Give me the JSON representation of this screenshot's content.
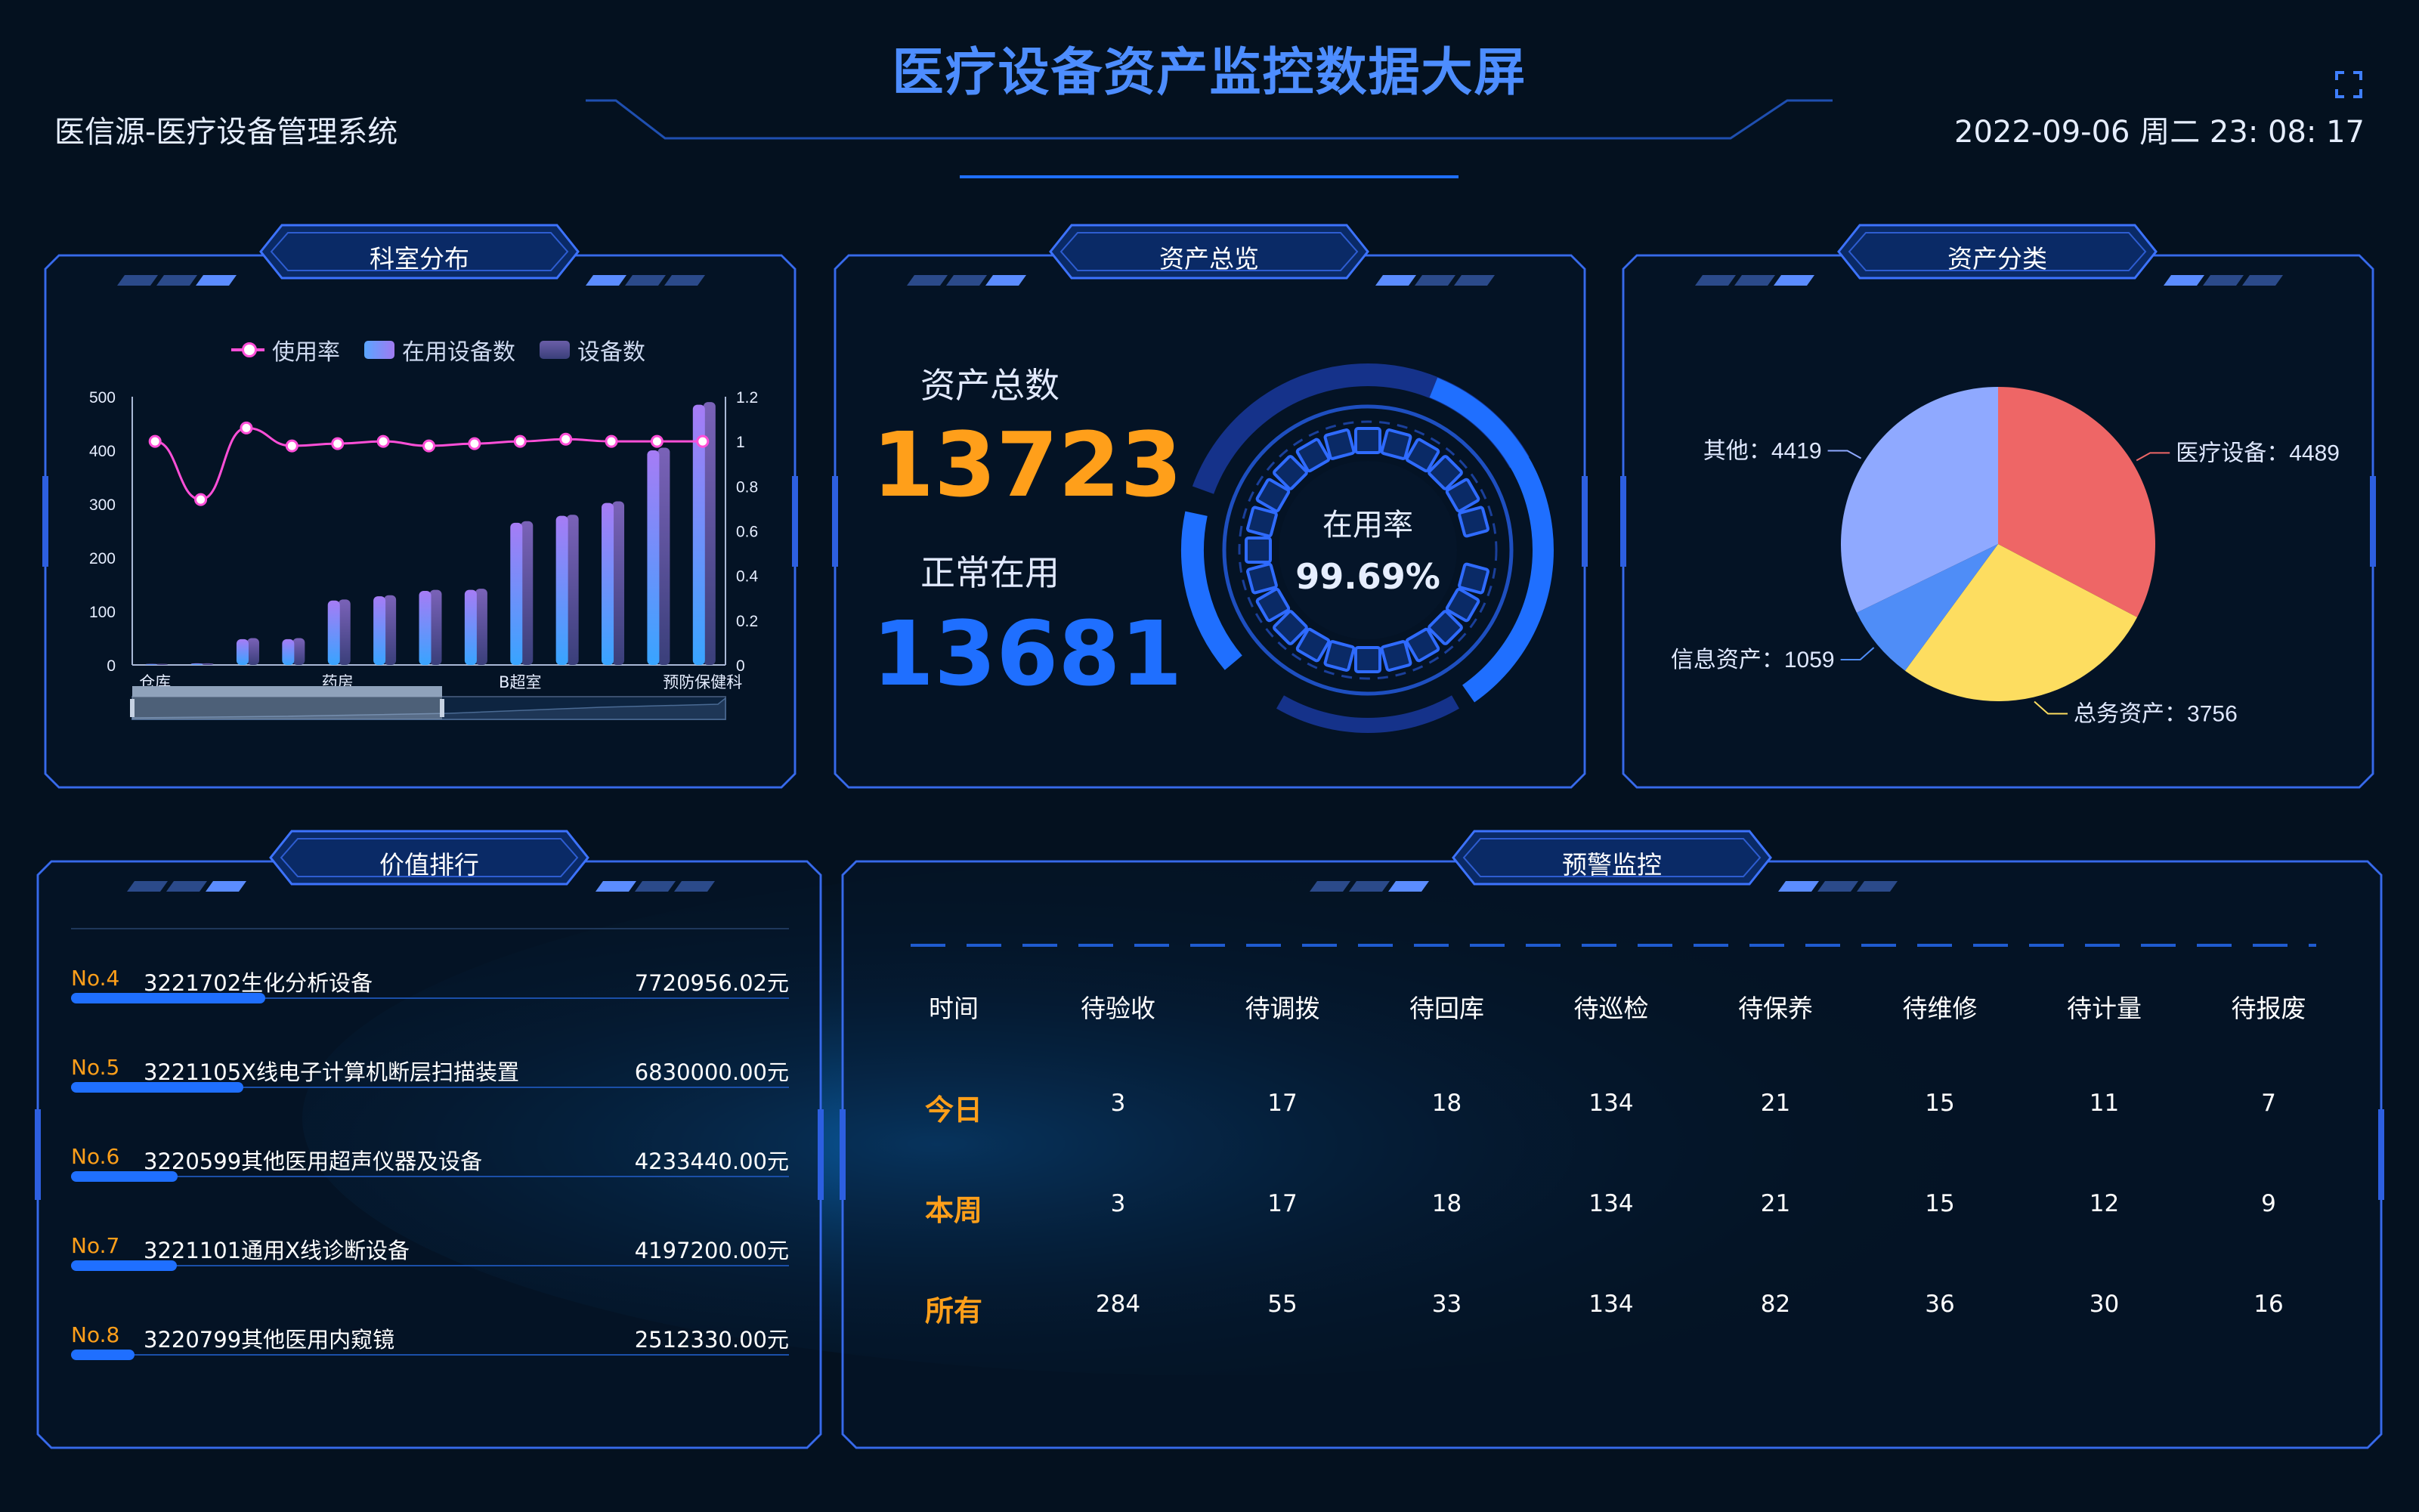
{
  "header": {
    "title": "医疗设备资产监控数据大屏",
    "system_name": "医信源-医疗设备管理系统",
    "datetime": "2022-09-06 周二 23: 08: 17",
    "fullscreen_icon": "expand-icon"
  },
  "panels": {
    "dept": {
      "title": "科室分布"
    },
    "overview": {
      "title": "资产总览"
    },
    "category": {
      "title": "资产分类"
    },
    "ranking": {
      "title": "价值排行"
    },
    "warning": {
      "title": "预警监控"
    }
  },
  "overview": {
    "total_label": "资产总数",
    "total_value": "13723",
    "normal_label": "正常在用",
    "normal_value": "13681",
    "rate_label": "在用率",
    "rate_value": "99.69%"
  },
  "colors": {
    "accent": "#4d8dff",
    "orange": "#ff9f1a",
    "blue_num": "#1f6fff",
    "pie_medical": "#ee6666",
    "pie_general": "#fddd60",
    "pie_info": "#4f8df7",
    "pie_other": "#8fa9ff"
  },
  "chart_data": [
    {
      "type": "bar",
      "legend": [
        "使用率",
        "在用设备数",
        "设备数"
      ],
      "categories": [
        "仓库",
        "",
        "",
        "",
        "药房",
        "",
        "",
        "",
        "B超室",
        "",
        "",
        "",
        "预防保健科"
      ],
      "series": [
        {
          "name": "在用设备数",
          "values": [
            2,
            3,
            48,
            48,
            120,
            128,
            138,
            140,
            265,
            278,
            302,
            400,
            485
          ]
        },
        {
          "name": "设备数",
          "values": [
            2,
            3,
            50,
            50,
            122,
            130,
            140,
            142,
            268,
            280,
            305,
            405,
            490
          ]
        },
        {
          "name": "使用率",
          "axis": "right",
          "values": [
            1.0,
            0.74,
            1.06,
            0.98,
            0.99,
            1.0,
            0.98,
            0.99,
            1.0,
            1.01,
            1.0,
            1.0,
            1.0
          ]
        }
      ],
      "ylim": [
        0,
        500
      ],
      "yticks": [
        "500",
        "400",
        "300",
        "200",
        "100",
        "0"
      ],
      "ylim_right": [
        0,
        1.2
      ],
      "yticks_right": [
        "1.2",
        "1",
        "0.8",
        "0.6",
        "0.4",
        "0.2",
        "0"
      ]
    },
    {
      "type": "pie",
      "slices": [
        {
          "name": "医疗设备",
          "value": 4489,
          "label": "医疗设备：4489"
        },
        {
          "name": "总务资产",
          "value": 3756,
          "label": "总务资产：3756"
        },
        {
          "name": "信息资产",
          "value": 1059,
          "label": "信息资产：1059"
        },
        {
          "name": "其他",
          "value": 4419,
          "label": "其他：4419"
        }
      ]
    }
  ],
  "ranking": {
    "items": [
      {
        "no": "No.4",
        "name": "3221702生化分析设备",
        "value": "7720956.02元",
        "ratio": 0.27
      },
      {
        "no": "No.5",
        "name": "3221105X线电子计算机断层扫描装置",
        "value": "6830000.00元",
        "ratio": 0.24
      },
      {
        "no": "No.6",
        "name": "3220599其他医用超声仪器及设备",
        "value": "4233440.00元",
        "ratio": 0.148
      },
      {
        "no": "No.7",
        "name": "3221101通用X线诊断设备",
        "value": "4197200.00元",
        "ratio": 0.147
      },
      {
        "no": "No.8",
        "name": "3220799其他医用内窥镜",
        "value": "2512330.00元",
        "ratio": 0.088
      }
    ]
  },
  "warning": {
    "headers": [
      "时间",
      "待验收",
      "待调拨",
      "待回库",
      "待巡检",
      "待保养",
      "待维修",
      "待计量",
      "待报废"
    ],
    "rows": [
      {
        "label": "今日",
        "cells": [
          "3",
          "17",
          "18",
          "134",
          "21",
          "15",
          "11",
          "7"
        ]
      },
      {
        "label": "本周",
        "cells": [
          "3",
          "17",
          "18",
          "134",
          "21",
          "15",
          "12",
          "9"
        ]
      },
      {
        "label": "所有",
        "cells": [
          "284",
          "55",
          "33",
          "134",
          "82",
          "36",
          "30",
          "16"
        ]
      }
    ]
  }
}
